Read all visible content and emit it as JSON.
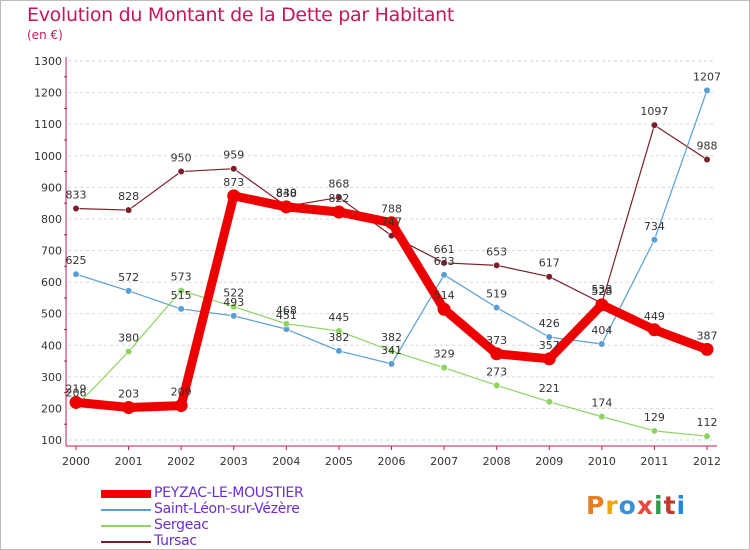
{
  "title": "Evolution du Montant de la Dette par Habitant",
  "subtitle": "(en €)",
  "logo": {
    "text": "Proxiti",
    "letters": [
      "P",
      "r",
      "o",
      "x",
      "i",
      "t",
      "i"
    ],
    "letter_colors": [
      "#e67e22",
      "#f0a30a",
      "#3a8fd6",
      "#e74c3c",
      "#2e9d4b",
      "#c0392b",
      "#1e88e5"
    ]
  },
  "chart_data": {
    "type": "line",
    "title": "Evolution du Montant de la Dette par Habitant",
    "subtitle": "(en €)",
    "xlabel": "",
    "ylabel": "",
    "x": [
      "2000",
      "2001",
      "2002",
      "2003",
      "2004",
      "2005",
      "2006",
      "2007",
      "2008",
      "2009",
      "2010",
      "2011",
      "2012"
    ],
    "ylim": [
      100,
      1300
    ],
    "yticks": [
      "100",
      "200",
      "300",
      "400",
      "500",
      "600",
      "700",
      "800",
      "900",
      "1000",
      "1100",
      "1200",
      "1300"
    ],
    "grid": "horizontal dashed",
    "legend_position": "bottom-left",
    "series": [
      {
        "name": "Tursac",
        "color": "#7b1f2b",
        "values": [
          833,
          828,
          950,
          959,
          840,
          868,
          747,
          661,
          653,
          617,
          533,
          1097,
          988
        ],
        "labels": [
          "833",
          "828",
          "950",
          "959",
          "840",
          "868",
          "747",
          "661",
          "653",
          "617",
          "533",
          "1097",
          "988"
        ]
      },
      {
        "name": "Saint-Léon-sur-Vézère",
        "color": "#5a9fd4",
        "values": [
          625,
          572,
          515,
          493,
          451,
          382,
          341,
          623,
          519,
          426,
          404,
          734,
          1207
        ],
        "labels": [
          "625",
          "572",
          "515",
          "493",
          "451",
          "382",
          "341",
          "623",
          "519",
          "426",
          "404",
          "734",
          "1207"
        ]
      },
      {
        "name": "Sergeac",
        "color": "#8fd460",
        "values": [
          206,
          380,
          573,
          522,
          468,
          445,
          382,
          329,
          273,
          221,
          174,
          129,
          112
        ],
        "labels": [
          "206",
          "380",
          "573",
          "522",
          "468",
          "445",
          "382",
          "329",
          "273",
          "221",
          "174",
          "129",
          "112"
        ]
      },
      {
        "name": "PEYZAC-LE-MOUSTIER",
        "color": "#ee0000",
        "values": [
          219,
          203,
          209,
          873,
          838,
          822,
          788,
          514,
          373,
          357,
          528,
          449,
          387
        ],
        "labels": [
          "219",
          "203",
          "209",
          "873",
          "838",
          "822",
          "788",
          "514",
          "373",
          "357",
          "528",
          "449",
          "387"
        ]
      }
    ],
    "legend": [
      "PEYZAC-LE-MOUSTIER",
      "Saint-Léon-sur-Vézère",
      "Sergeac",
      "Tursac"
    ]
  }
}
